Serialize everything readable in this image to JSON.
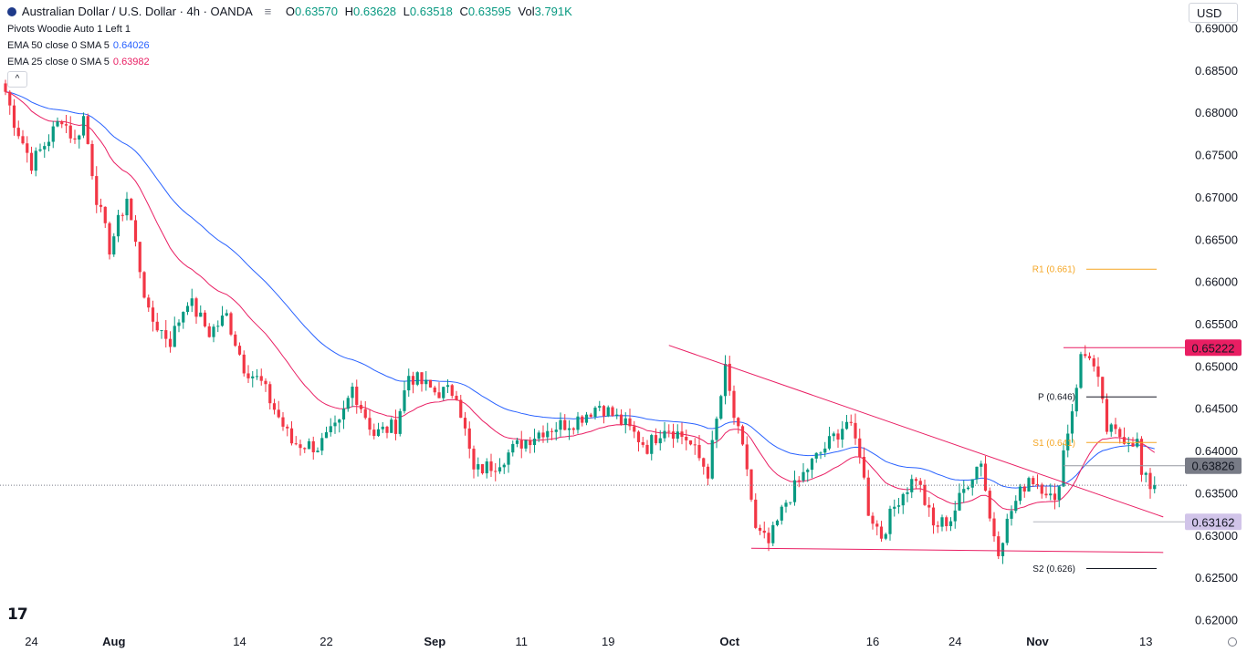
{
  "header": {
    "symbol": "Australian Dollar / U.S. Dollar · 4h · OANDA",
    "o": "0.63570",
    "h": "0.63628",
    "l": "0.63518",
    "c": "0.63595",
    "vol": "3.791K",
    "o_key": "O",
    "h_key": "H",
    "l_key": "L",
    "c_key": "C",
    "vol_key": "Vol"
  },
  "indicators": [
    {
      "label": "Pivots Woodie Auto 1 Left 1",
      "value": ""
    },
    {
      "label": "EMA 50 close 0 SMA 5",
      "value": "0.64026"
    },
    {
      "label": "EMA 25 close 0 SMA 5",
      "value": "0.63982"
    }
  ],
  "currency": "USD",
  "collapse_glyph": "^",
  "logo": "17",
  "colors": {
    "up": "#089981",
    "down": "#f23645",
    "ema50": "#2962ff",
    "ema25": "#e91e63",
    "trend": "#e91e63",
    "pivot": "#131722",
    "r1": "#f5a623",
    "s1": "#f5a623"
  },
  "chart_data": {
    "type": "candlestick",
    "title": "Australian Dollar / U.S. Dollar · 4h · OANDA",
    "ylim": [
      0.6173,
      0.6911
    ],
    "y_ticks": [
      "0.69000",
      "0.68500",
      "0.68000",
      "0.67500",
      "0.67000",
      "0.66500",
      "0.66000",
      "0.65500",
      "0.65000",
      "0.64500",
      "0.64000",
      "0.63500",
      "0.63000",
      "0.62500",
      "0.62000"
    ],
    "x_ticks": [
      {
        "label": "24",
        "idx": 6,
        "bold": false
      },
      {
        "label": "Aug",
        "idx": 25,
        "bold": true
      },
      {
        "label": "14",
        "idx": 54,
        "bold": false
      },
      {
        "label": "22",
        "idx": 74,
        "bold": false
      },
      {
        "label": "Sep",
        "idx": 99,
        "bold": true
      },
      {
        "label": "11",
        "idx": 119,
        "bold": false
      },
      {
        "label": "19",
        "idx": 139,
        "bold": false
      },
      {
        "label": "Oct",
        "idx": 167,
        "bold": true
      },
      {
        "label": "16",
        "idx": 200,
        "bold": false
      },
      {
        "label": "24",
        "idx": 219,
        "bold": false
      },
      {
        "label": "Nov",
        "idx": 238,
        "bold": true
      },
      {
        "label": "13",
        "idx": 263,
        "bold": false
      }
    ],
    "price_path": [
      [
        0,
        0.6825
      ],
      [
        2,
        0.679
      ],
      [
        6,
        0.674
      ],
      [
        10,
        0.677
      ],
      [
        13,
        0.6795
      ],
      [
        16,
        0.6765
      ],
      [
        18,
        0.6795
      ],
      [
        21,
        0.67
      ],
      [
        24,
        0.664
      ],
      [
        28,
        0.67
      ],
      [
        33,
        0.656
      ],
      [
        38,
        0.653
      ],
      [
        42,
        0.658
      ],
      [
        47,
        0.654
      ],
      [
        51,
        0.656
      ],
      [
        55,
        0.65
      ],
      [
        59,
        0.648
      ],
      [
        66,
        0.641
      ],
      [
        72,
        0.6405
      ],
      [
        77,
        0.643
      ],
      [
        80,
        0.6475
      ],
      [
        85,
        0.642
      ],
      [
        90,
        0.643
      ],
      [
        93,
        0.649
      ],
      [
        99,
        0.647
      ],
      [
        104,
        0.647
      ],
      [
        108,
        0.6375
      ],
      [
        113,
        0.6385
      ],
      [
        119,
        0.641
      ],
      [
        124,
        0.6425
      ],
      [
        131,
        0.6435
      ],
      [
        137,
        0.6455
      ],
      [
        143,
        0.643
      ],
      [
        148,
        0.6405
      ],
      [
        152,
        0.643
      ],
      [
        157,
        0.6415
      ],
      [
        162,
        0.6375
      ],
      [
        166,
        0.6495
      ],
      [
        168,
        0.644
      ],
      [
        171,
        0.638
      ],
      [
        173,
        0.6305
      ],
      [
        176,
        0.629
      ],
      [
        180,
        0.634
      ],
      [
        185,
        0.638
      ],
      [
        190,
        0.641
      ],
      [
        194,
        0.6435
      ],
      [
        197,
        0.64
      ],
      [
        199,
        0.633
      ],
      [
        202,
        0.63
      ],
      [
        206,
        0.6345
      ],
      [
        210,
        0.637
      ],
      [
        214,
        0.631
      ],
      [
        218,
        0.632
      ],
      [
        222,
        0.6365
      ],
      [
        225,
        0.639
      ],
      [
        227,
        0.632
      ],
      [
        229,
        0.6285
      ],
      [
        232,
        0.633
      ],
      [
        236,
        0.637
      ],
      [
        240,
        0.6355
      ],
      [
        242,
        0.6335
      ],
      [
        244,
        0.64
      ],
      [
        246,
        0.645
      ],
      [
        248,
        0.651
      ],
      [
        250,
        0.6515
      ],
      [
        252,
        0.648
      ],
      [
        254,
        0.6425
      ],
      [
        256,
        0.642
      ],
      [
        259,
        0.6415
      ],
      [
        261,
        0.641
      ],
      [
        262,
        0.637
      ],
      [
        264,
        0.63595
      ]
    ],
    "ema50_last": 0.64026,
    "ema25_last": 0.63982,
    "price_tags": [
      {
        "value": "0.65222",
        "price": 0.65222,
        "bg": "#e91e63",
        "fg": "#ffffff"
      },
      {
        "value": "0.63826",
        "price": 0.63826,
        "bg": "#787b86",
        "fg": "#ffffff"
      },
      {
        "value": "0.63162",
        "price": 0.63162,
        "bg": "#d1c4e9",
        "fg": "#131722"
      }
    ],
    "pivots": [
      {
        "label": "R1 (0.661)",
        "price": 0.6615,
        "color": "#f5a623"
      },
      {
        "label": "P (0.646)",
        "price": 0.6464,
        "color": "#131722"
      },
      {
        "label": "S1 (0.641)",
        "price": 0.641,
        "color": "#f5a623"
      },
      {
        "label": "S2 (0.626)",
        "price": 0.6261,
        "color": "#131722"
      }
    ],
    "trendlines": [
      {
        "from": [
          153,
          0.6525
        ],
        "to": [
          267,
          0.6322
        ]
      },
      {
        "from": [
          172,
          0.6285
        ],
        "to": [
          267,
          0.628
        ]
      }
    ],
    "hlines": [
      {
        "from_idx": 244,
        "price": 0.65222,
        "color": "#e91e63"
      },
      {
        "from_idx": 244,
        "price": 0.63826,
        "color": "#9598a1"
      },
      {
        "from_idx": 237,
        "price": 0.63162,
        "color": "#b2b5be"
      }
    ],
    "last_price": 0.63595,
    "bar_count": 266
  }
}
